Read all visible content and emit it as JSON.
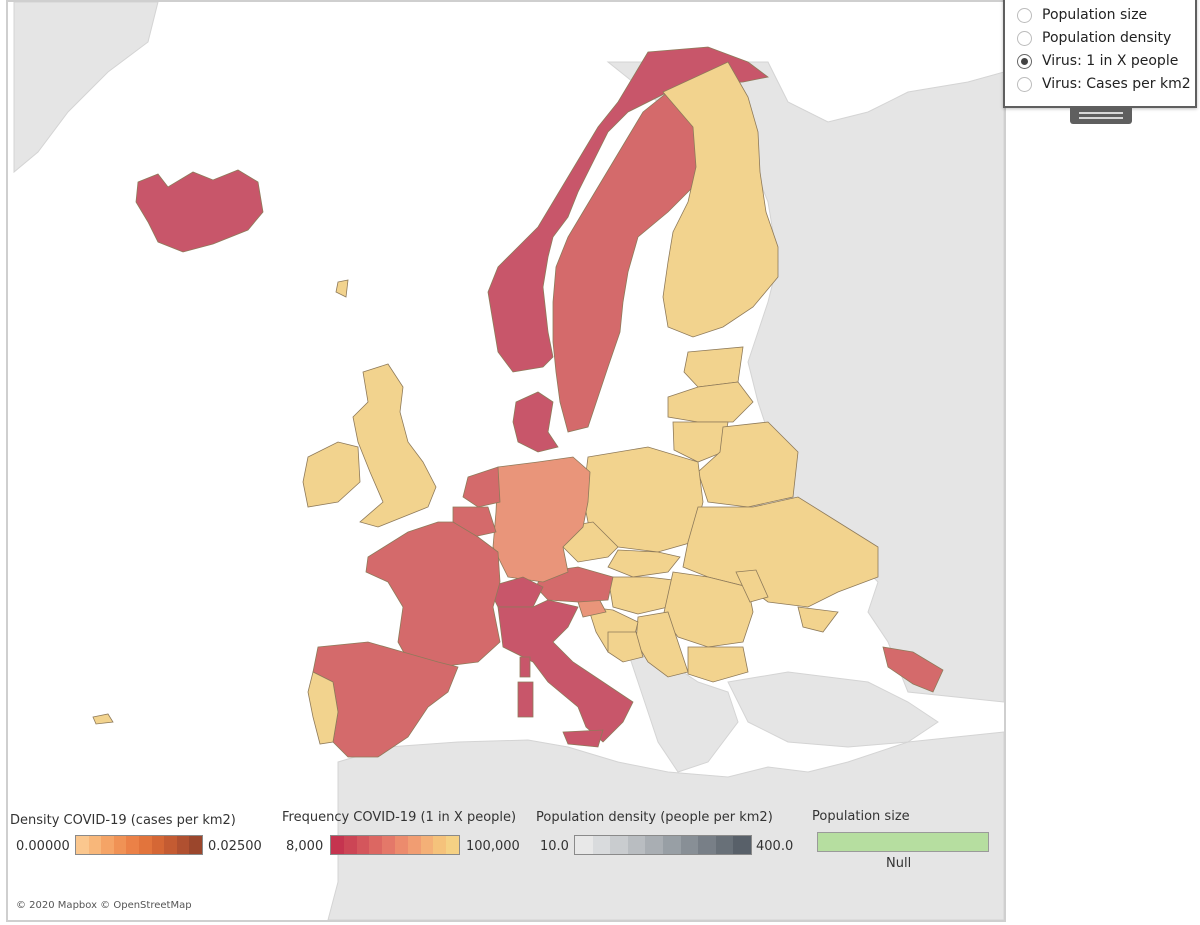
{
  "map": {
    "attribution": "© 2020 Mapbox © OpenStreetMap",
    "colors": {
      "sea": "#ffffff",
      "land": "#e5e5e5",
      "country_border": "#8e7a5a",
      "highest_frequency": "#c8566a",
      "high_frequency": "#d46a6b",
      "medium_frequency": "#e9957a",
      "low_frequency": "#f2d38e"
    }
  },
  "radio_group": {
    "options": [
      {
        "label": "Population size",
        "selected": false
      },
      {
        "label": "Population density",
        "selected": false
      },
      {
        "label": "Virus: 1 in X people",
        "selected": true
      },
      {
        "label": "Virus: Cases per km2",
        "selected": false
      }
    ]
  },
  "legends": {
    "density": {
      "title": "Density COVID-19 (cases per km2)",
      "min": "0.00000",
      "max": "0.02500",
      "colors": [
        "#fbc78e",
        "#f8b77a",
        "#f5a466",
        "#f09255",
        "#eb8147",
        "#e2743c",
        "#d56735",
        "#c45b32",
        "#b05030",
        "#9b462c"
      ]
    },
    "frequency": {
      "title": "Frequency COVID-19 (1 in X people)",
      "min": "8,000",
      "max": "100,000",
      "colors": [
        "#c5344f",
        "#cc4555",
        "#d4565c",
        "#dc6762",
        "#e47869",
        "#ec8b6d",
        "#f19d72",
        "#f4b077",
        "#f5c27b",
        "#f5d184"
      ]
    },
    "population_density": {
      "title": "Population density (people per km2)",
      "min": "10.0",
      "max": "400.0",
      "colors": [
        "#e8e8e8",
        "#d9dbdd",
        "#c9cccf",
        "#b9bdc1",
        "#a9aeb3",
        "#989fa5",
        "#888f96",
        "#787f87",
        "#687078",
        "#586069"
      ]
    },
    "population_size": {
      "title": "Population size",
      "null_label": "Null",
      "color": "#b6dea0"
    }
  }
}
